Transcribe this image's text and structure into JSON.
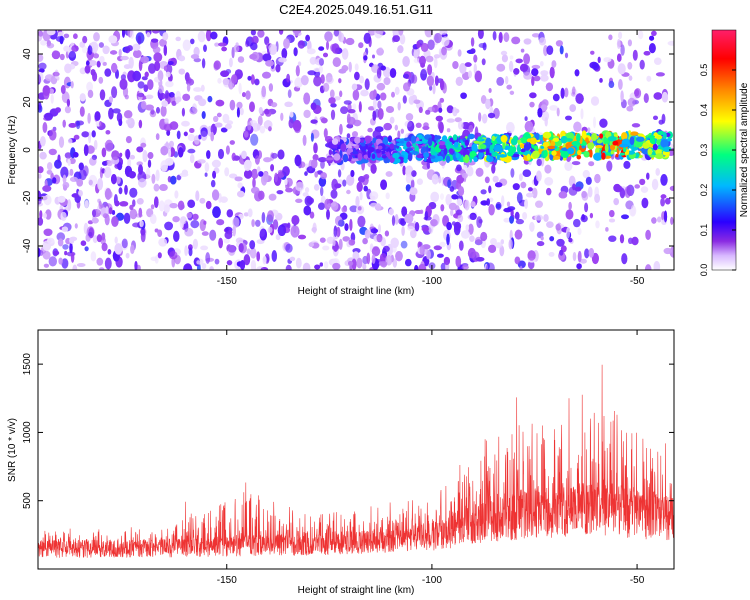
{
  "figure_title": "C2E4.2025.049.16.51.G11",
  "colors": {
    "snr_line": "#ee3333",
    "colormap": [
      "#ffffff",
      "#d8b8ff",
      "#8a2be2",
      "#2a00ff",
      "#00d0ff",
      "#00ff80",
      "#ffff00",
      "#ff8800",
      "#ff0000",
      "#ff1f6a"
    ]
  },
  "chart_data": [
    {
      "type": "heatmap",
      "title": "C2E4.2025.049.16.51.G11",
      "xlabel": "Height of straight line (km)",
      "ylabel": "Frequency (Hz)",
      "xlim": [
        -196,
        -41
      ],
      "ylim": [
        -50,
        50
      ],
      "x_ticks": [
        -150,
        -100,
        -50
      ],
      "y_ticks": [
        -40,
        -20,
        0,
        20,
        40
      ],
      "signal_band": {
        "frequency_hz": 0,
        "x_range": [
          -125,
          -42
        ],
        "peak_amplitude": 0.55,
        "description_values": [
          {
            "x": -120,
            "amplitude": 0.15
          },
          {
            "x": -100,
            "amplitude": 0.25
          },
          {
            "x": -80,
            "amplitude": 0.4
          },
          {
            "x": -70,
            "amplitude": 0.45
          },
          {
            "x": -55,
            "amplitude": 0.55
          },
          {
            "x": -45,
            "amplitude": 0.35
          }
        ]
      },
      "colorbar": {
        "label": "Normalized spectral amplitude",
        "range": [
          0,
          0.6
        ],
        "ticks": [
          "0.0",
          "0.1",
          "0.2",
          "0.3",
          "0.4",
          "0.5"
        ]
      }
    },
    {
      "type": "line",
      "xlabel": "Height of straight line (km)",
      "ylabel": "SNR (10 * v/v)",
      "xlim": [
        -196,
        -41
      ],
      "ylim": [
        0,
        1750
      ],
      "x_ticks": [
        -150,
        -100,
        -50
      ],
      "y_ticks": [
        500,
        1000,
        1500
      ],
      "envelope": [
        {
          "x": -196,
          "base": 150,
          "max": 300
        },
        {
          "x": -170,
          "base": 150,
          "max": 320
        },
        {
          "x": -145,
          "base": 170,
          "max": 760
        },
        {
          "x": -130,
          "base": 180,
          "max": 420
        },
        {
          "x": -115,
          "base": 200,
          "max": 550
        },
        {
          "x": -100,
          "base": 240,
          "max": 560
        },
        {
          "x": -90,
          "base": 320,
          "max": 1100
        },
        {
          "x": -80,
          "base": 380,
          "max": 1300
        },
        {
          "x": -70,
          "base": 420,
          "max": 1600
        },
        {
          "x": -62,
          "base": 450,
          "max": 1750
        },
        {
          "x": -55,
          "base": 430,
          "max": 1580
        },
        {
          "x": -50,
          "base": 400,
          "max": 1380
        },
        {
          "x": -41,
          "base": 380,
          "max": 900
        }
      ]
    }
  ]
}
